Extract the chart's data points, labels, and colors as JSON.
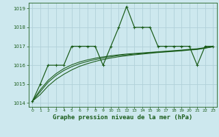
{
  "bg_color": "#cde8ee",
  "grid_color": "#b0d0d8",
  "line_color": "#1a5c1a",
  "title": "Graphe pression niveau de la mer (hPa)",
  "xlim": [
    -0.5,
    23.5
  ],
  "ylim": [
    1013.8,
    1019.3
  ],
  "yticks": [
    1014,
    1015,
    1016,
    1017,
    1018,
    1019
  ],
  "xticks": [
    0,
    1,
    2,
    3,
    4,
    5,
    6,
    7,
    8,
    9,
    10,
    11,
    12,
    13,
    14,
    15,
    16,
    17,
    18,
    19,
    20,
    21,
    22,
    23
  ],
  "series1_x": [
    0,
    1,
    2,
    3,
    4,
    5,
    6,
    7,
    8,
    9,
    10,
    11,
    12,
    13,
    14,
    15,
    16,
    17,
    18,
    19,
    20,
    21,
    22,
    23
  ],
  "series1_y": [
    1014.1,
    1015.0,
    1016.0,
    1016.0,
    1016.0,
    1017.0,
    1017.0,
    1017.0,
    1017.0,
    1016.0,
    1017.0,
    1018.0,
    1019.1,
    1018.0,
    1018.0,
    1018.0,
    1017.0,
    1017.0,
    1017.0,
    1017.0,
    1017.0,
    1016.0,
    1017.0,
    1017.0
  ],
  "series2_x": [
    0,
    1,
    2,
    3,
    4,
    5,
    6,
    7,
    8,
    9,
    10,
    11,
    12,
    13,
    14,
    15,
    16,
    17,
    18,
    19,
    20,
    21,
    22,
    23
  ],
  "series2_y": [
    1014.1,
    1014.45,
    1014.9,
    1015.25,
    1015.52,
    1015.75,
    1015.94,
    1016.08,
    1016.2,
    1016.3,
    1016.38,
    1016.45,
    1016.5,
    1016.55,
    1016.59,
    1016.63,
    1016.67,
    1016.7,
    1016.73,
    1016.76,
    1016.8,
    1016.83,
    1016.9,
    1016.97
  ],
  "series3_x": [
    0,
    1,
    2,
    3,
    4,
    5,
    6,
    7,
    8,
    9,
    10,
    11,
    12,
    13,
    14,
    15,
    16,
    17,
    18,
    19,
    20,
    21,
    22,
    23
  ],
  "series3_y": [
    1014.1,
    1014.6,
    1015.1,
    1015.45,
    1015.72,
    1015.92,
    1016.08,
    1016.2,
    1016.3,
    1016.38,
    1016.45,
    1016.51,
    1016.55,
    1016.59,
    1016.62,
    1016.66,
    1016.69,
    1016.72,
    1016.75,
    1016.78,
    1016.82,
    1016.85,
    1016.91,
    1016.98
  ],
  "series4_x": [
    0,
    1,
    2,
    3,
    4,
    5,
    6,
    7,
    8,
    9,
    10,
    11,
    12,
    13,
    14,
    15,
    16,
    17,
    18,
    19,
    20,
    21,
    22,
    23
  ],
  "series4_y": [
    1014.1,
    1014.7,
    1015.2,
    1015.55,
    1015.82,
    1016.02,
    1016.17,
    1016.28,
    1016.37,
    1016.44,
    1016.5,
    1016.55,
    1016.59,
    1016.62,
    1016.65,
    1016.68,
    1016.71,
    1016.74,
    1016.77,
    1016.8,
    1016.84,
    1016.87,
    1016.93,
    1016.99
  ]
}
